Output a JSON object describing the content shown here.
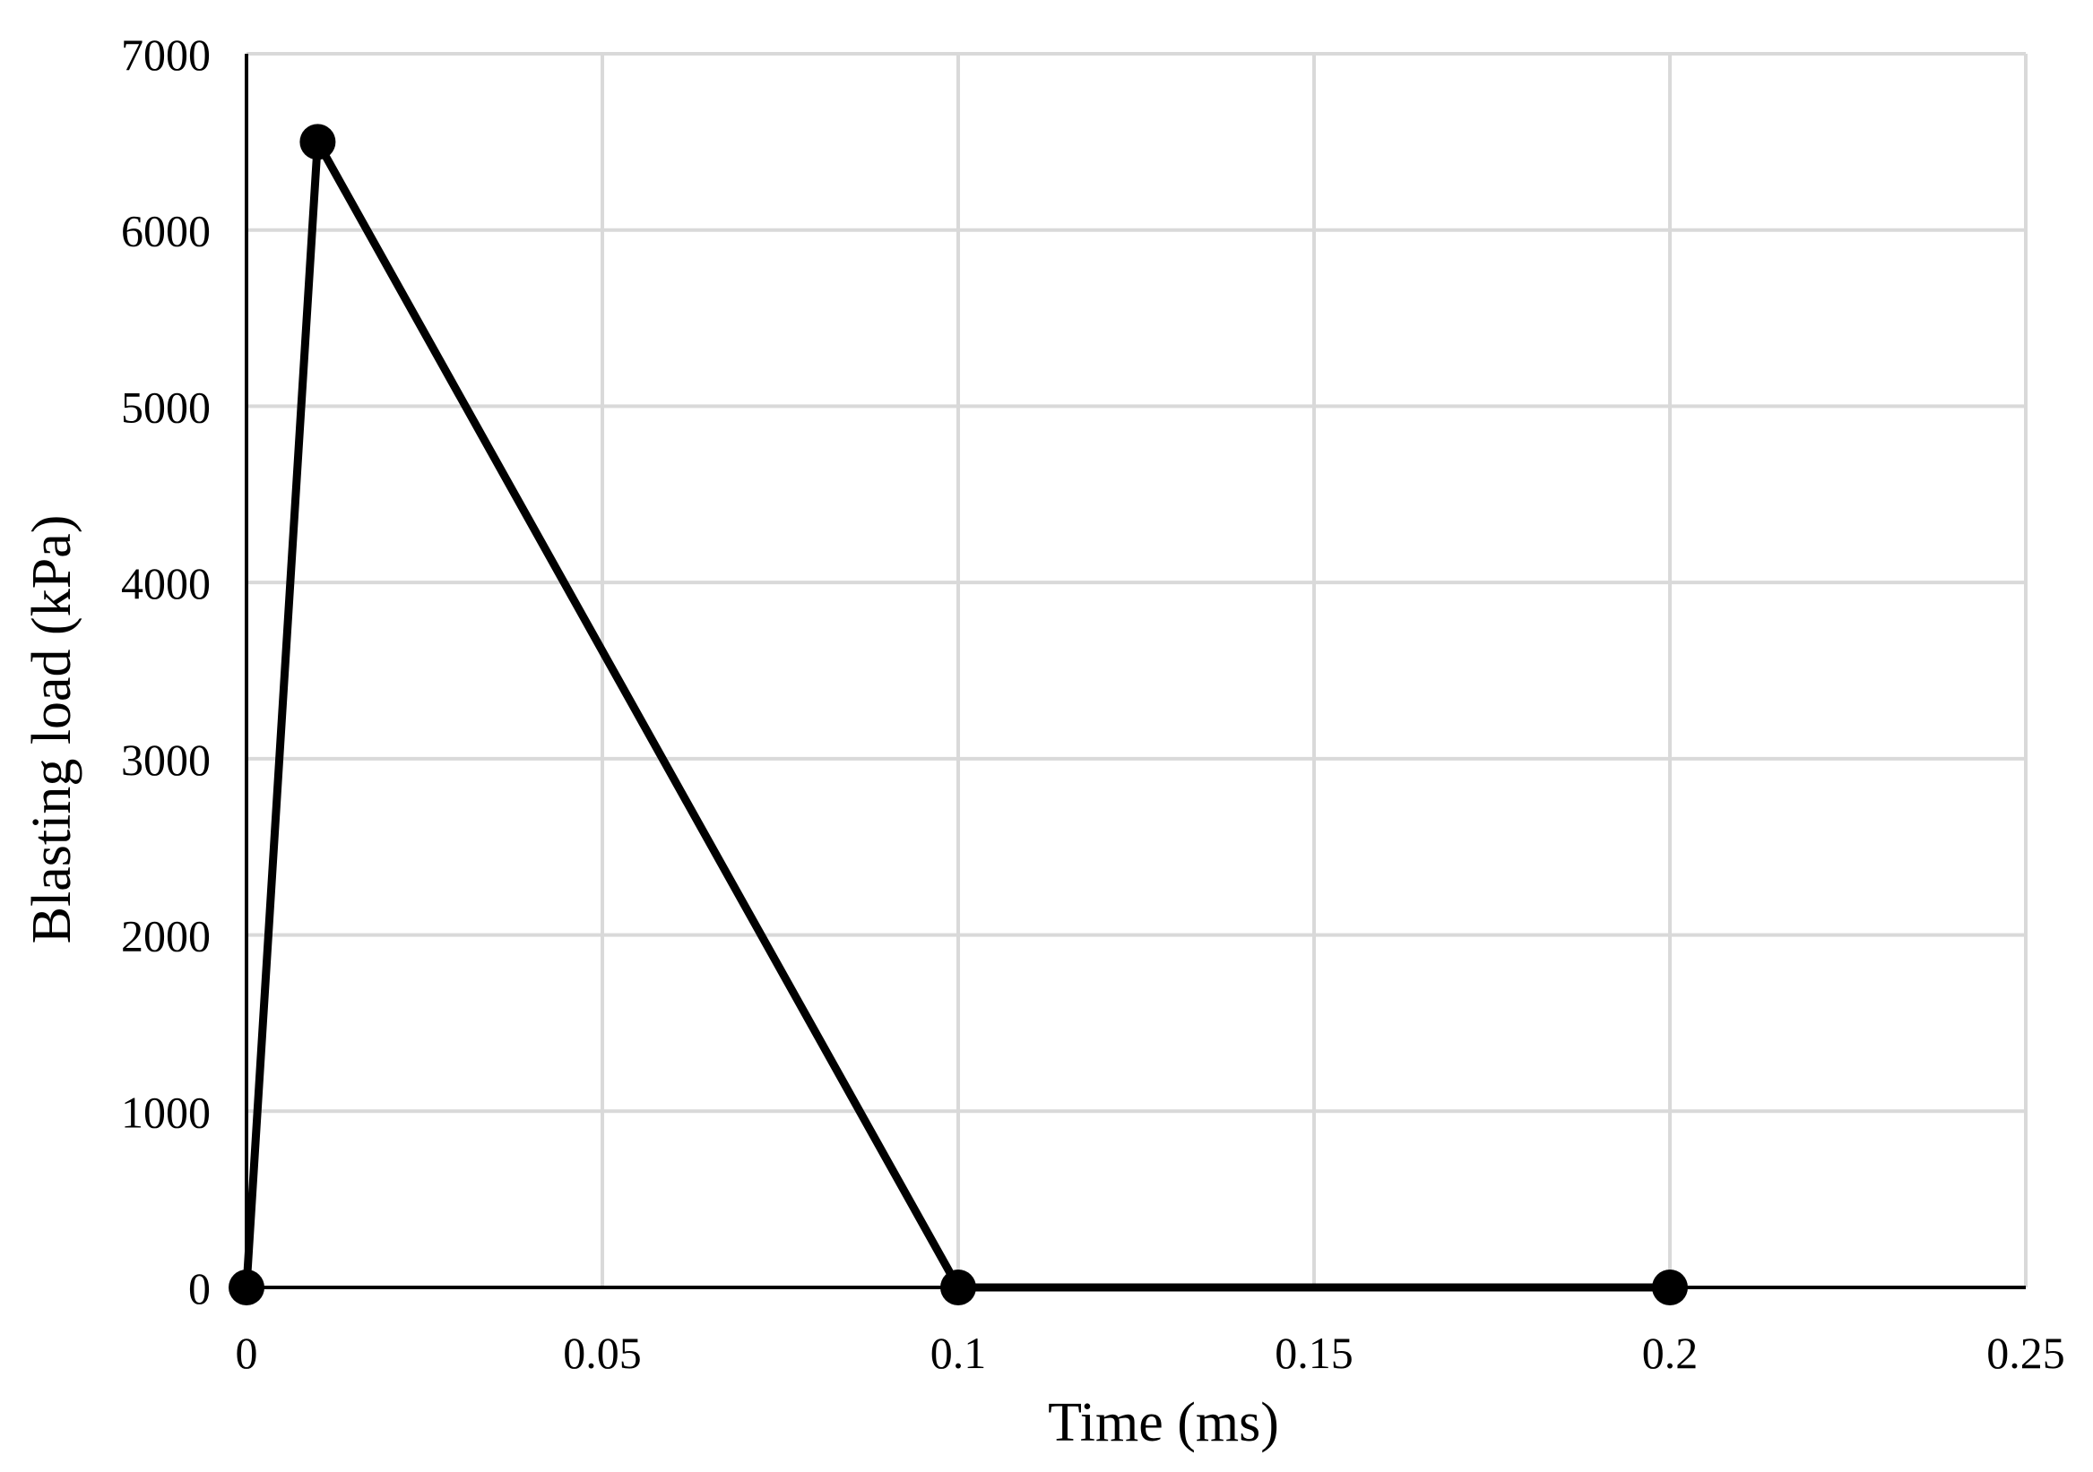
{
  "chart_data": {
    "type": "line",
    "xlabel": "Time (ms)",
    "ylabel": "Blasting load (kPa)",
    "xlim": [
      0,
      0.25
    ],
    "ylim": [
      0,
      7000
    ],
    "x_ticks": [
      "0",
      "0.05",
      "0.1",
      "0.15",
      "0.2",
      "0.25"
    ],
    "y_ticks": [
      "0",
      "1000",
      "2000",
      "3000",
      "4000",
      "5000",
      "6000",
      "7000"
    ],
    "grid": true,
    "series": [
      {
        "x": [
          0,
          0.01,
          0.1,
          0.2
        ],
        "y": [
          0,
          6500,
          0,
          0
        ],
        "color": "#000000",
        "marker": "circle"
      }
    ]
  }
}
